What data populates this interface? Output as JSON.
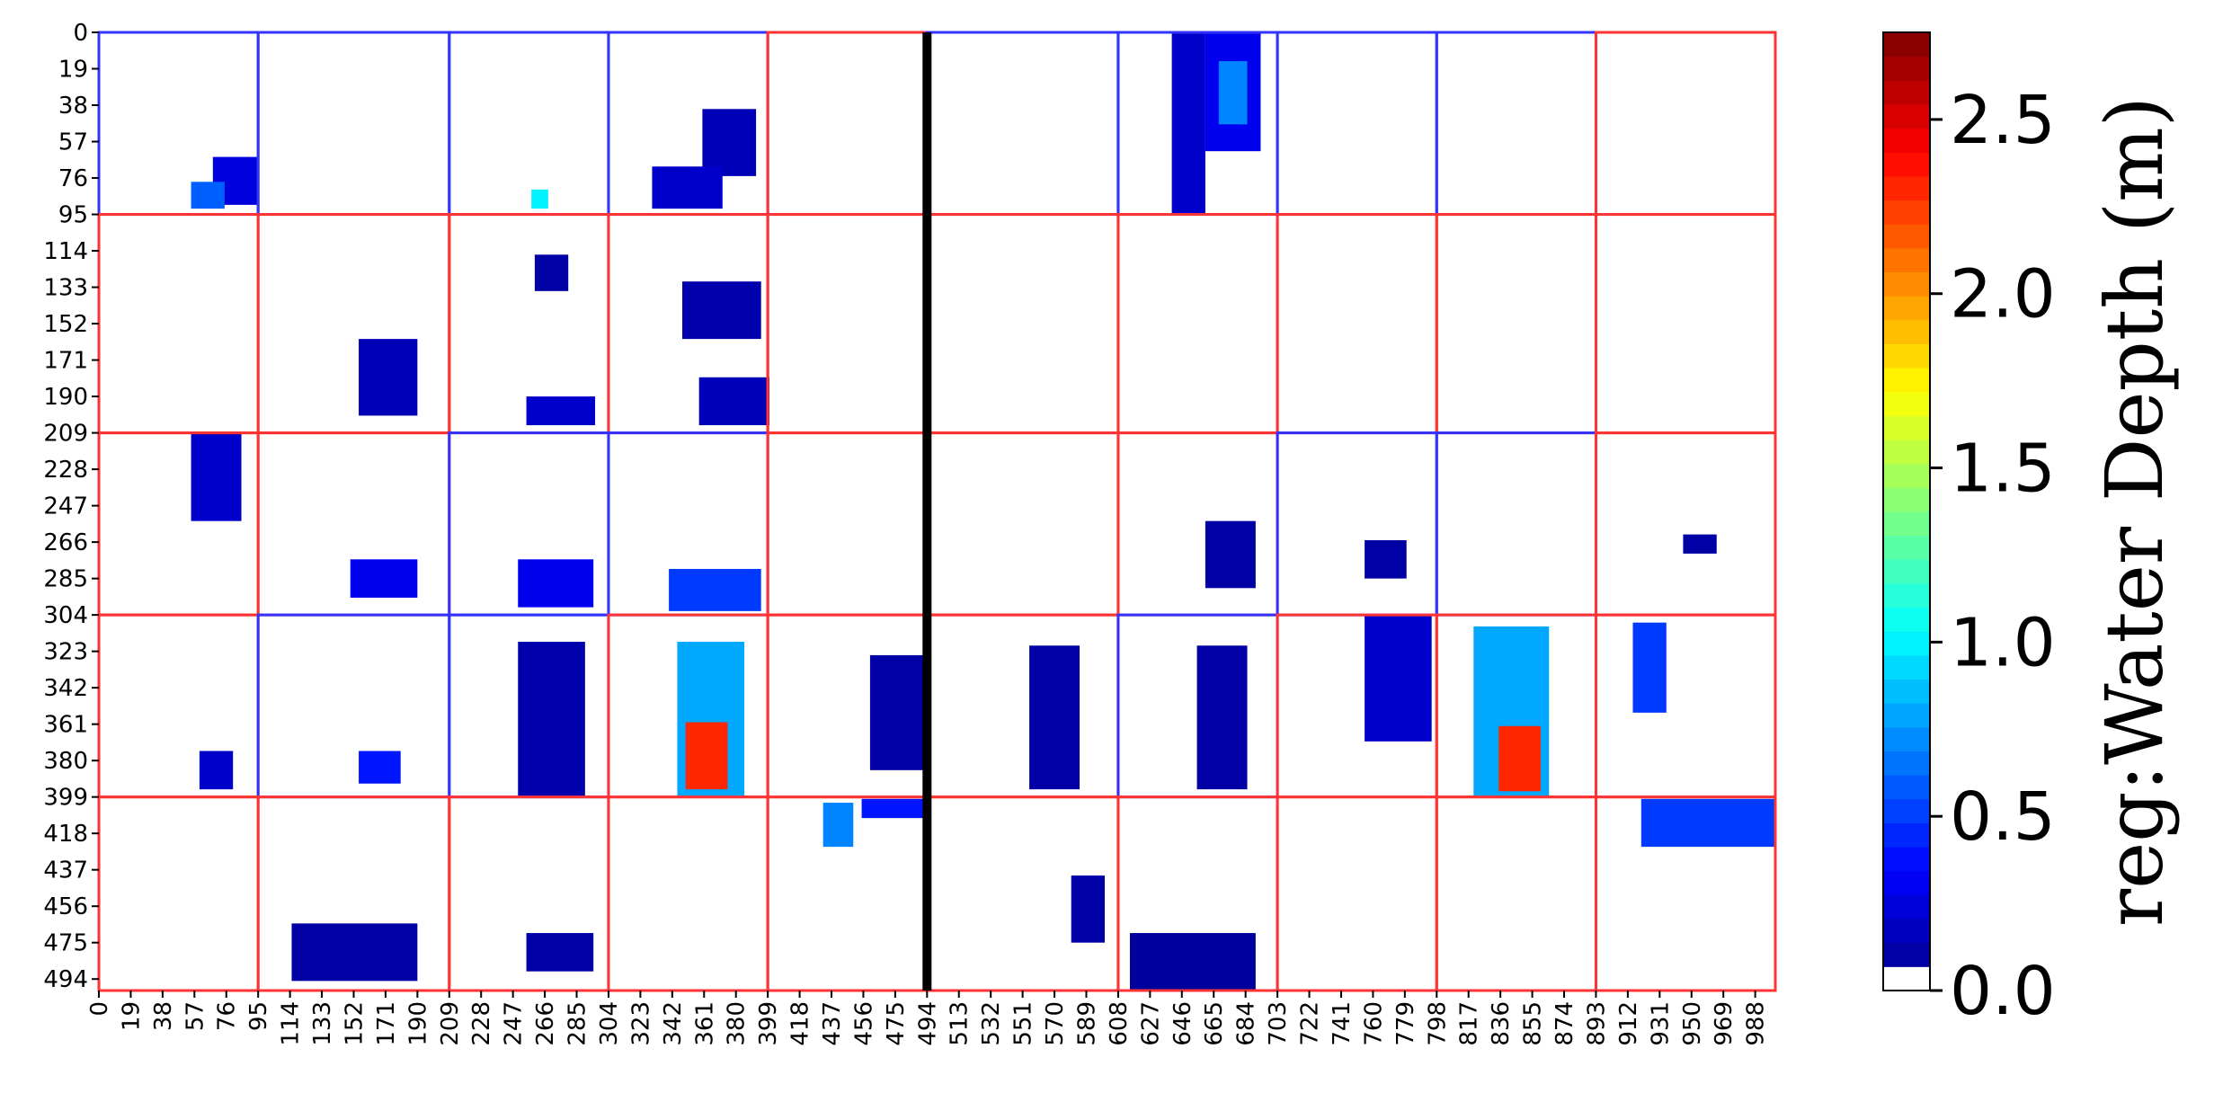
{
  "chart_data": {
    "type": "heatmap",
    "title": "",
    "xlabel": "",
    "ylabel": "",
    "x_range": [
      0,
      1000
    ],
    "y_range": [
      0,
      500
    ],
    "y_inverted": true,
    "grid": {
      "cell_size": 95,
      "columns": 10,
      "rows": 5,
      "column_boundaries": [
        0,
        95,
        209,
        304,
        399,
        494,
        608,
        703,
        798,
        893,
        1000
      ],
      "row_boundaries": [
        0,
        95,
        209,
        304,
        399,
        500
      ],
      "separator_at_x": 494,
      "separator_color": "#000000",
      "tile_border_colors": {
        "blue": "#3333ff",
        "red": "#ff3333"
      },
      "tile_colors": [
        [
          "blue",
          "blue",
          "blue",
          "blue",
          "red",
          "blue",
          "blue",
          "blue",
          "blue",
          "red"
        ],
        [
          "red",
          "red",
          "red",
          "red",
          "red",
          "red",
          "red",
          "red",
          "red",
          "red"
        ],
        [
          "red",
          "red",
          "blue",
          "blue",
          "red",
          "red",
          "red",
          "blue",
          "blue",
          "red"
        ],
        [
          "red",
          "blue",
          "blue",
          "red",
          "red",
          "red",
          "blue",
          "red",
          "red",
          "red"
        ],
        [
          "red",
          "red",
          "red",
          "red",
          "red",
          "red",
          "red",
          "red",
          "red",
          "red"
        ]
      ]
    },
    "x_tick_labels": [
      "0",
      "19",
      "38",
      "57",
      "76",
      "95",
      "114",
      "133",
      "152",
      "171",
      "190",
      "209",
      "228",
      "247",
      "266",
      "285",
      "304",
      "323",
      "342",
      "361",
      "380",
      "399",
      "418",
      "437",
      "456",
      "475",
      "494",
      "513",
      "532",
      "551",
      "570",
      "589",
      "608",
      "627",
      "646",
      "665",
      "684",
      "703",
      "722",
      "741",
      "760",
      "779",
      "798",
      "817",
      "836",
      "855",
      "874",
      "893",
      "912",
      "931",
      "950",
      "969",
      "988"
    ],
    "y_tick_labels": [
      "0",
      "19",
      "38",
      "57",
      "76",
      "95",
      "114",
      "133",
      "152",
      "171",
      "190",
      "209",
      "228",
      "247",
      "266",
      "285",
      "304",
      "323",
      "342",
      "361",
      "380",
      "399",
      "418",
      "437",
      "456",
      "475",
      "494"
    ],
    "colorbar": {
      "label": "reg:Water Depth (m)",
      "range": [
        0.0,
        2.75
      ],
      "ticks": [
        "0.0",
        "0.5",
        "1.0",
        "1.5",
        "2.0",
        "2.5"
      ],
      "tick_values": [
        0.0,
        0.5,
        1.0,
        1.5,
        2.0,
        2.5
      ],
      "colormap": "jet",
      "zero_color": "#ffffff"
    },
    "regions": [
      {
        "name": "flood-r0-c0",
        "x": [
          68,
          95
        ],
        "y": [
          65,
          90
        ],
        "depth": 0.25
      },
      {
        "name": "flood-r0-c0b",
        "x": [
          55,
          75
        ],
        "y": [
          78,
          92
        ],
        "depth": 0.6
      },
      {
        "name": "flood-r0-c2",
        "x": [
          258,
          268
        ],
        "y": [
          82,
          92
        ],
        "depth": 1.0
      },
      {
        "name": "flood-r0-c3",
        "x": [
          360,
          392
        ],
        "y": [
          40,
          75
        ],
        "depth": 0.15
      },
      {
        "name": "flood-r0-c3b",
        "x": [
          330,
          372
        ],
        "y": [
          70,
          92
        ],
        "depth": 0.2
      },
      {
        "name": "flood-r0-c6",
        "x": [
          640,
          660
        ],
        "y": [
          0,
          95
        ],
        "depth": 0.2
      },
      {
        "name": "flood-r0-c6b",
        "x": [
          660,
          693
        ],
        "y": [
          0,
          62
        ],
        "depth": 0.3
      },
      {
        "name": "flood-r0-c6c",
        "x": [
          668,
          685
        ],
        "y": [
          15,
          48
        ],
        "depth": 0.7
      },
      {
        "name": "flood-r1-c1",
        "x": [
          155,
          190
        ],
        "y": [
          160,
          200
        ],
        "depth": 0.15
      },
      {
        "name": "flood-r1-c2",
        "x": [
          260,
          280
        ],
        "y": [
          116,
          135
        ],
        "depth": 0.1
      },
      {
        "name": "flood-r1-c2b",
        "x": [
          255,
          296
        ],
        "y": [
          190,
          205
        ],
        "depth": 0.2
      },
      {
        "name": "flood-r1-c3",
        "x": [
          348,
          395
        ],
        "y": [
          130,
          160
        ],
        "depth": 0.12
      },
      {
        "name": "flood-r1-c3b",
        "x": [
          358,
          400
        ],
        "y": [
          180,
          205
        ],
        "depth": 0.15
      },
      {
        "name": "flood-r2-c0",
        "x": [
          55,
          85
        ],
        "y": [
          209,
          255
        ],
        "depth": 0.2
      },
      {
        "name": "flood-r2-c1",
        "x": [
          150,
          190
        ],
        "y": [
          275,
          295
        ],
        "depth": 0.3
      },
      {
        "name": "flood-r2-c2",
        "x": [
          250,
          295
        ],
        "y": [
          275,
          300
        ],
        "depth": 0.3
      },
      {
        "name": "flood-r2-c3",
        "x": [
          340,
          395
        ],
        "y": [
          280,
          302
        ],
        "depth": 0.5
      },
      {
        "name": "flood-r2-c6",
        "x": [
          660,
          690
        ],
        "y": [
          255,
          290
        ],
        "depth": 0.1
      },
      {
        "name": "flood-r2-c7",
        "x": [
          755,
          780
        ],
        "y": [
          265,
          285
        ],
        "depth": 0.1
      },
      {
        "name": "flood-r2-c9",
        "x": [
          945,
          965
        ],
        "y": [
          262,
          272
        ],
        "depth": 0.1
      },
      {
        "name": "flood-r3-c0",
        "x": [
          60,
          80
        ],
        "y": [
          375,
          395
        ],
        "depth": 0.2
      },
      {
        "name": "flood-r3-c1",
        "x": [
          155,
          180
        ],
        "y": [
          375,
          392
        ],
        "depth": 0.4
      },
      {
        "name": "flood-r3-c2",
        "x": [
          250,
          290
        ],
        "y": [
          318,
          399
        ],
        "depth": 0.12
      },
      {
        "name": "flood-r3-c3",
        "x": [
          345,
          385
        ],
        "y": [
          318,
          399
        ],
        "depth": 0.8
      },
      {
        "name": "flood-r3-c3b",
        "x": [
          350,
          375
        ],
        "y": [
          360,
          395
        ],
        "depth": 2.3
      },
      {
        "name": "flood-r3-c4",
        "x": [
          460,
          494
        ],
        "y": [
          325,
          385
        ],
        "depth": 0.1
      },
      {
        "name": "flood-r3-c5",
        "x": [
          555,
          585
        ],
        "y": [
          320,
          395
        ],
        "depth": 0.1
      },
      {
        "name": "flood-r3-c6",
        "x": [
          655,
          685
        ],
        "y": [
          320,
          395
        ],
        "depth": 0.1
      },
      {
        "name": "flood-r3-c7",
        "x": [
          755,
          795
        ],
        "y": [
          304,
          370
        ],
        "depth": 0.2
      },
      {
        "name": "flood-r3-c8",
        "x": [
          820,
          865
        ],
        "y": [
          310,
          399
        ],
        "depth": 0.8
      },
      {
        "name": "flood-r3-c8b",
        "x": [
          835,
          860
        ],
        "y": [
          362,
          396
        ],
        "depth": 2.3
      },
      {
        "name": "flood-r3-c9",
        "x": [
          915,
          935
        ],
        "y": [
          308,
          355
        ],
        "depth": 0.5
      },
      {
        "name": "flood-r4-c1",
        "x": [
          115,
          190
        ],
        "y": [
          465,
          495
        ],
        "depth": 0.1
      },
      {
        "name": "flood-r4-c2",
        "x": [
          255,
          295
        ],
        "y": [
          470,
          490
        ],
        "depth": 0.1
      },
      {
        "name": "flood-r4-c4",
        "x": [
          432,
          450
        ],
        "y": [
          402,
          425
        ],
        "depth": 0.7
      },
      {
        "name": "flood-r4-c4b",
        "x": [
          455,
          494
        ],
        "y": [
          400,
          410
        ],
        "depth": 0.4
      },
      {
        "name": "flood-r4-c5",
        "x": [
          580,
          600
        ],
        "y": [
          440,
          475
        ],
        "depth": 0.1
      },
      {
        "name": "flood-r4-c6",
        "x": [
          615,
          690
        ],
        "y": [
          470,
          500
        ],
        "depth": 0.08
      },
      {
        "name": "flood-r4-c9",
        "x": [
          920,
          1000
        ],
        "y": [
          400,
          425
        ],
        "depth": 0.5
      }
    ]
  }
}
